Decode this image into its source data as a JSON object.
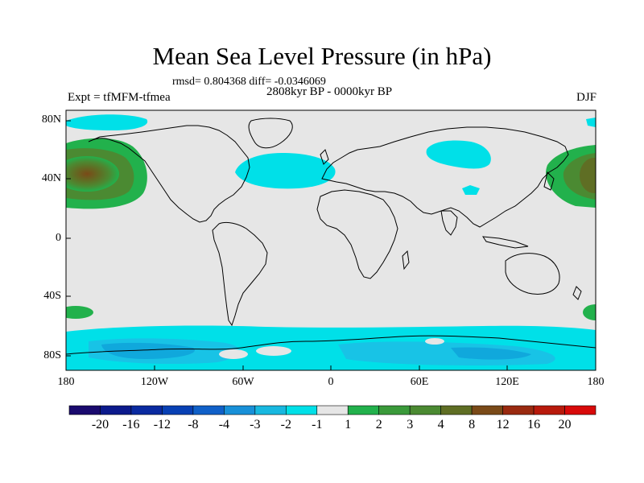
{
  "title": "Mean Sea Level Pressure (in hPa)",
  "stats": "rmsd= 0.804368 diff= -0.0346069",
  "period": "2808kyr BP - 0000kyr BP",
  "expt": "Expt = tfMFM-tfmea",
  "season": "DJF",
  "map": {
    "lat_labels": [
      "80N",
      "40N",
      "0",
      "40S",
      "80S"
    ],
    "lon_labels": [
      "180",
      "120W",
      "60W",
      "0",
      "60E",
      "120E",
      "180"
    ],
    "colors": {
      "neutral": "#e6e6e6",
      "cyan": "#00e0e8",
      "light_blue": "#18c3e6",
      "mid_blue": "#10a8dc",
      "green": "#22b14c",
      "dark_green": "#4b8a32",
      "olive": "#5f6e24",
      "brown": "#7a4a18",
      "coast": "#000000"
    }
  },
  "colorbar": {
    "labels": [
      "-20",
      "-16",
      "-12",
      "-8",
      "-4",
      "-3",
      "-2",
      "-1",
      "1",
      "2",
      "3",
      "4",
      "8",
      "12",
      "16",
      "20"
    ],
    "colors": [
      "#1a0a6e",
      "#0c1a8c",
      "#0a2aa0",
      "#0840b4",
      "#1060c8",
      "#1890d8",
      "#18b8e0",
      "#00e0e8",
      "#e6e6e6",
      "#22b14c",
      "#3a9a3a",
      "#4b8a32",
      "#5f6e24",
      "#7a4a18",
      "#9a2a10",
      "#b81a0c",
      "#d80a0a"
    ]
  }
}
